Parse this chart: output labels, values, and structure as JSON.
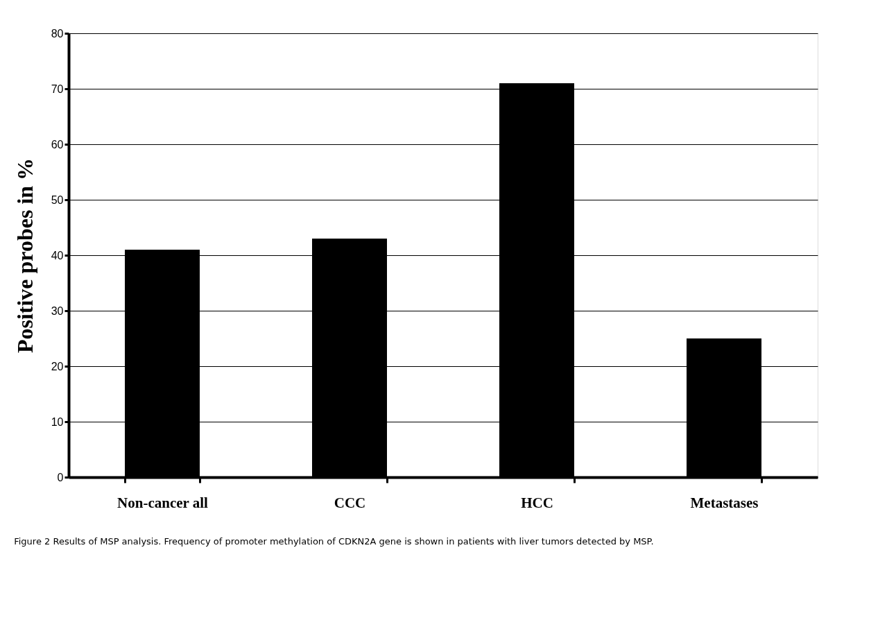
{
  "chart_data": {
    "type": "bar",
    "categories": [
      "Non-cancer all",
      "CCC",
      "HCC",
      "Metastases"
    ],
    "values": [
      41,
      43,
      71,
      25
    ],
    "color": "#000000",
    "ylabel": "Positive probes in %",
    "ylim": [
      0,
      80
    ],
    "yticks": [
      0,
      10,
      20,
      30,
      40,
      50,
      60,
      70,
      80
    ],
    "grid": "y",
    "annotations": [
      "Figure 2 Results of MSP analysis. Frequency of promoter methylation of CDKN2A gene is shown in patients with liver tumors detected by MSP."
    ]
  }
}
